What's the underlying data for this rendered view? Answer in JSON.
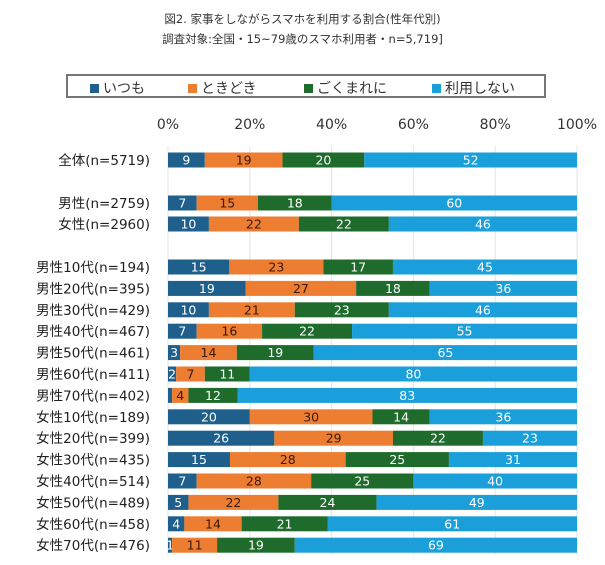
{
  "chart_data": {
    "type": "bar",
    "orientation": "horizontal",
    "stacked": "percent",
    "title": "図2. 家事をしながらスマホを利用する割合(性年代別)",
    "subtitle": "調査対象:全国・15~79歳のスマホ利用者・n=5,719]",
    "xlim": [
      0,
      100
    ],
    "xticks": [
      "0%",
      "20%",
      "40%",
      "60%",
      "80%",
      "100%"
    ],
    "grid": true,
    "legend_position": "top",
    "series": [
      {
        "name": "いつも",
        "color": "#1f5f8b",
        "label_color": "#ffffff",
        "values": [
          9,
          7,
          10,
          15,
          19,
          10,
          7,
          3,
          2,
          1,
          20,
          26,
          15,
          7,
          5,
          4,
          1
        ]
      },
      {
        "name": "ときどき",
        "color": "#ed7d31",
        "label_color": "#3a1a0a",
        "values": [
          19,
          15,
          22,
          23,
          27,
          21,
          16,
          14,
          7,
          4,
          30,
          29,
          28,
          28,
          22,
          14,
          11
        ]
      },
      {
        "name": "ごくまれに",
        "color": "#1e6b2b",
        "label_color": "#ffffff",
        "values": [
          20,
          18,
          22,
          17,
          18,
          23,
          22,
          19,
          11,
          12,
          14,
          22,
          25,
          25,
          24,
          21,
          19
        ]
      },
      {
        "name": "利用しない",
        "color": "#1a9fda",
        "label_color": "#ffffff",
        "values": [
          52,
          60,
          46,
          45,
          36,
          46,
          55,
          65,
          80,
          83,
          36,
          23,
          31,
          40,
          49,
          61,
          69
        ]
      }
    ],
    "hidden_labels": [
      [
        9,
        0
      ]
    ],
    "categories": [
      "全体(n=5719)",
      "男性(n=2759)",
      "女性(n=2960)",
      "男性10代(n=194)",
      "男性20代(n=395)",
      "男性30代(n=429)",
      "男性40代(n=467)",
      "男性50代(n=461)",
      "男性60代(n=411)",
      "男性70代(n=402)",
      "女性10代(n=189)",
      "女性20代(n=399)",
      "女性30代(n=435)",
      "女性40代(n=514)",
      "女性50代(n=489)",
      "女性60代(n=458)",
      "女性70代(n=476)"
    ],
    "groups": [
      [
        0
      ],
      [
        1,
        2
      ],
      [
        3,
        4,
        5,
        6,
        7,
        8,
        9,
        10,
        11,
        12,
        13,
        14,
        15,
        16
      ]
    ]
  }
}
